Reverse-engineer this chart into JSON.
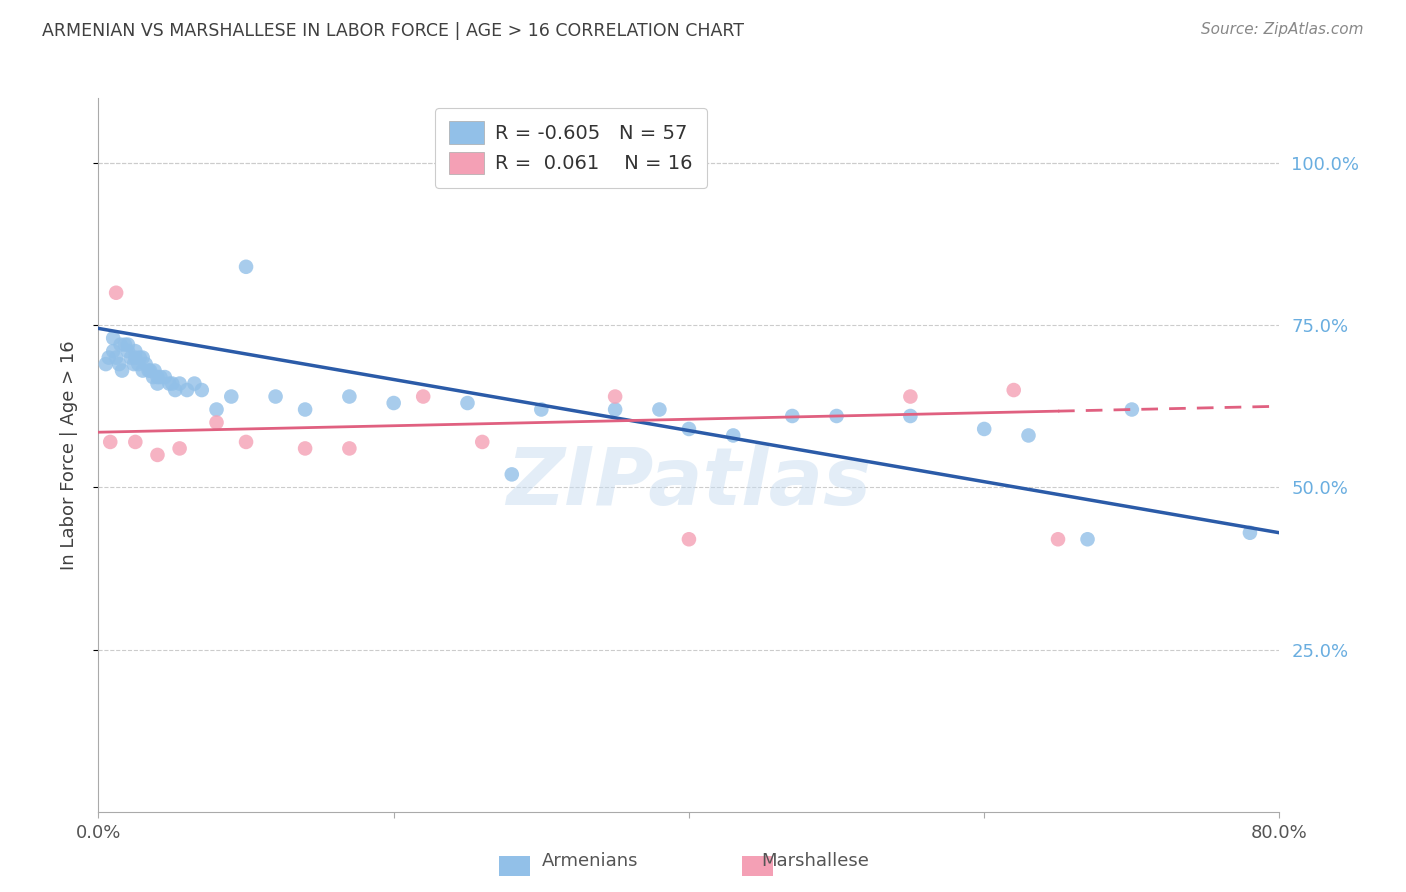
{
  "title": "ARMENIAN VS MARSHALLESE IN LABOR FORCE | AGE > 16 CORRELATION CHART",
  "source": "Source: ZipAtlas.com",
  "ylabel": "In Labor Force | Age > 16",
  "legend_armenians": "Armenians",
  "legend_marshallese": "Marshallese",
  "legend_r_armenian": "-0.605",
  "legend_n_armenian": "57",
  "legend_r_marshallese": "0.061",
  "legend_n_marshallese": "16",
  "color_armenian": "#92C0E8",
  "color_marshallese": "#F4A0B5",
  "color_trend_armenian": "#2B5BA8",
  "color_trend_marshallese": "#E06080",
  "background_color": "#FFFFFF",
  "grid_color": "#CCCCCC",
  "title_color": "#404040",
  "axis_label_color": "#404040",
  "right_axis_color": "#6AAEE0",
  "xlim": [
    0.0,
    0.8
  ],
  "ylim": [
    0.0,
    1.1
  ],
  "ytick_values": [
    0.25,
    0.5,
    0.75,
    1.0
  ],
  "ytick_labels": [
    "25.0%",
    "50.0%",
    "75.0%",
    "100.0%"
  ],
  "armenian_x": [
    0.005,
    0.007,
    0.01,
    0.01,
    0.012,
    0.014,
    0.015,
    0.016,
    0.018,
    0.02,
    0.02,
    0.022,
    0.024,
    0.025,
    0.025,
    0.027,
    0.028,
    0.03,
    0.03,
    0.032,
    0.034,
    0.035,
    0.037,
    0.038,
    0.04,
    0.04,
    0.042,
    0.045,
    0.048,
    0.05,
    0.052,
    0.055,
    0.06,
    0.065,
    0.07,
    0.08,
    0.09,
    0.1,
    0.12,
    0.14,
    0.17,
    0.2,
    0.25,
    0.28,
    0.3,
    0.35,
    0.38,
    0.4,
    0.43,
    0.47,
    0.5,
    0.55,
    0.6,
    0.63,
    0.67,
    0.7,
    0.78
  ],
  "armenian_y": [
    0.69,
    0.7,
    0.71,
    0.73,
    0.7,
    0.69,
    0.72,
    0.68,
    0.72,
    0.72,
    0.71,
    0.7,
    0.69,
    0.71,
    0.7,
    0.69,
    0.7,
    0.7,
    0.68,
    0.69,
    0.68,
    0.68,
    0.67,
    0.68,
    0.67,
    0.66,
    0.67,
    0.67,
    0.66,
    0.66,
    0.65,
    0.66,
    0.65,
    0.66,
    0.65,
    0.62,
    0.64,
    0.84,
    0.64,
    0.62,
    0.64,
    0.63,
    0.63,
    0.52,
    0.62,
    0.62,
    0.62,
    0.59,
    0.58,
    0.61,
    0.61,
    0.61,
    0.59,
    0.58,
    0.42,
    0.62,
    0.43
  ],
  "marshallese_x": [
    0.008,
    0.012,
    0.025,
    0.04,
    0.055,
    0.08,
    0.1,
    0.14,
    0.17,
    0.22,
    0.26,
    0.35,
    0.4,
    0.55,
    0.62,
    0.65
  ],
  "marshallese_y": [
    0.57,
    0.8,
    0.57,
    0.55,
    0.56,
    0.6,
    0.57,
    0.56,
    0.56,
    0.64,
    0.57,
    0.64,
    0.42,
    0.64,
    0.65,
    0.42
  ],
  "trend_arm_x0": 0.0,
  "trend_arm_y0": 0.745,
  "trend_arm_x1": 0.8,
  "trend_arm_y1": 0.43,
  "trend_mar_x0": 0.0,
  "trend_mar_y0": 0.585,
  "trend_mar_x1": 0.8,
  "trend_mar_y1": 0.625,
  "trend_mar_solid_end": 0.65,
  "watermark": "ZIPatlas"
}
